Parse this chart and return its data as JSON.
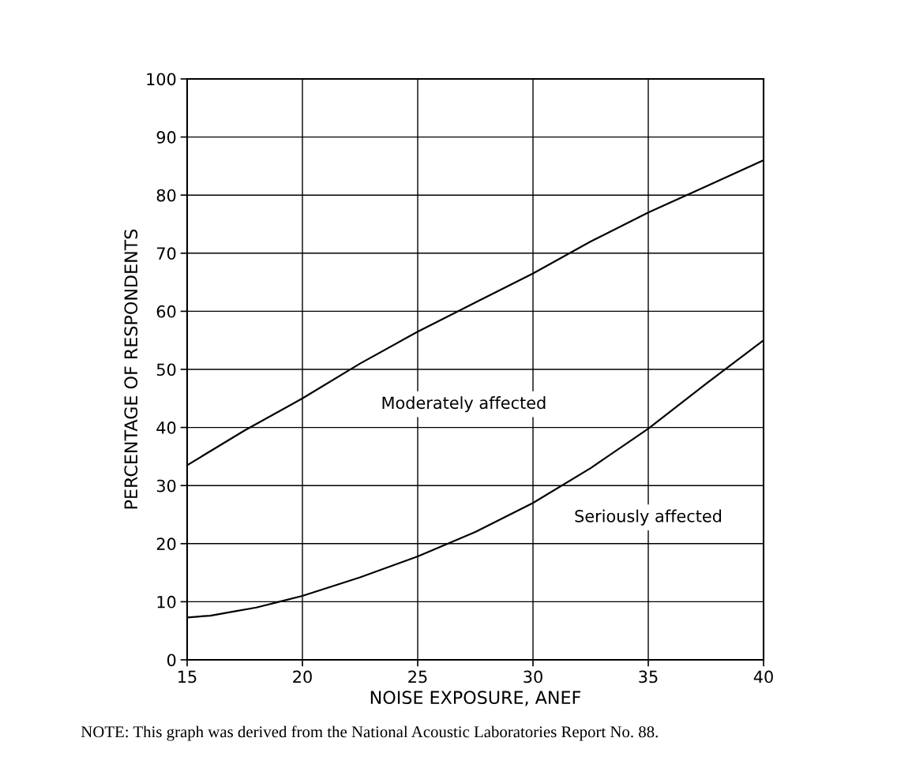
{
  "chart_data": {
    "type": "line",
    "xlabel": "NOISE EXPOSURE, ANEF",
    "ylabel": "PERCENTAGE OF RESPONDENTS",
    "xlim": [
      15,
      40
    ],
    "xticks": [
      15,
      20,
      25,
      30,
      35,
      40
    ],
    "ylim": [
      0,
      100
    ],
    "yticks": [
      0,
      10,
      20,
      30,
      40,
      50,
      60,
      70,
      80,
      90,
      100
    ],
    "grid": true,
    "marker": "none",
    "line_style": "solid",
    "annotations": [
      "NOTE: This graph was derived from the National Acoustic Laboratories Report No. 88."
    ],
    "series": [
      {
        "name": "Moderately affected",
        "color": "#000000",
        "x": [
          15,
          17.5,
          20,
          22.5,
          25,
          27.5,
          30,
          32.5,
          35,
          37.5,
          40
        ],
        "values": [
          33.5,
          39.5,
          45,
          51,
          56.5,
          61.5,
          66.5,
          72,
          77,
          81.5,
          86
        ]
      },
      {
        "name": "Seriously affected",
        "color": "#000000",
        "x": [
          15,
          16,
          17,
          18,
          19,
          20,
          22.5,
          25,
          27.5,
          30,
          32.5,
          35,
          37.5,
          40
        ],
        "values": [
          7.3,
          7.6,
          8.3,
          9.0,
          10,
          11,
          14.2,
          17.8,
          22,
          27,
          33,
          39.8,
          47.5,
          55
        ]
      }
    ]
  }
}
